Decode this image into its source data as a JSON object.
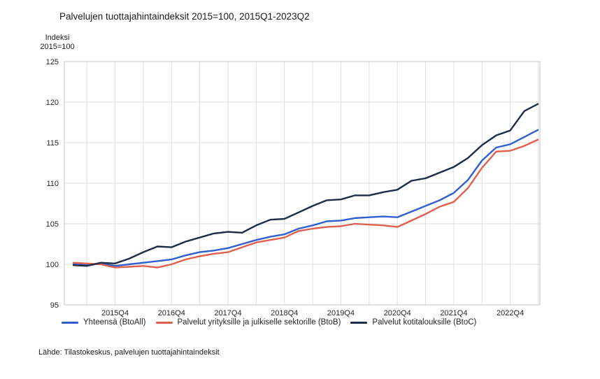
{
  "title": "Palvelujen tuottajahintaindeksit 2015=100, 2015Q1-2023Q2",
  "y_axis_unit": {
    "line1": "Indeksi",
    "line2": "2015=100"
  },
  "source_note": "Lähde: Tilastokeskus, palvelujen tuottajahintaindeksit",
  "colors": {
    "background": "#ffffff",
    "grid": "#dedede",
    "plot_border": "#c6c6c6",
    "text": "#262626",
    "series_btoall": "#2f5fd0",
    "series_btob": "#e0604e",
    "series_btoc": "#1e2c47"
  },
  "chart_data": {
    "type": "line",
    "title": "Palvelujen tuottajahintaindeksit 2015=100, 2015Q1-2023Q2",
    "xlabel": "",
    "ylabel": "Indeksi 2015=100",
    "ylim": [
      95,
      125
    ],
    "yticks": [
      95,
      100,
      105,
      110,
      115,
      120,
      125
    ],
    "grid": true,
    "legend_position": "bottom",
    "categories": [
      "2015Q1",
      "2015Q2",
      "2015Q3",
      "2015Q4",
      "2016Q1",
      "2016Q2",
      "2016Q3",
      "2016Q4",
      "2017Q1",
      "2017Q2",
      "2017Q3",
      "2017Q4",
      "2018Q1",
      "2018Q2",
      "2018Q3",
      "2018Q4",
      "2019Q1",
      "2019Q2",
      "2019Q3",
      "2019Q4",
      "2020Q1",
      "2020Q2",
      "2020Q3",
      "2020Q4",
      "2021Q1",
      "2021Q2",
      "2021Q3",
      "2021Q4",
      "2022Q1",
      "2022Q2",
      "2022Q3",
      "2022Q4",
      "2023Q1",
      "2023Q2"
    ],
    "x_tick_labels": [
      "2015Q4",
      "2016Q4",
      "2017Q4",
      "2018Q4",
      "2019Q4",
      "2020Q4",
      "2021Q4",
      "2022Q4"
    ],
    "x_tick_indices": [
      3,
      7,
      11,
      15,
      19,
      23,
      27,
      31
    ],
    "x_gridline_indices": [
      1,
      3,
      5,
      7,
      9,
      11,
      13,
      15,
      17,
      19,
      21,
      23,
      25,
      27,
      29,
      31,
      33
    ],
    "series": [
      {
        "name": "Yhteensä (BtoAll)",
        "color_key": "series_btoall",
        "values": [
          100.0,
          99.9,
          100.1,
          99.8,
          100.0,
          100.2,
          100.4,
          100.6,
          101.1,
          101.5,
          101.7,
          102.0,
          102.5,
          103.0,
          103.4,
          103.7,
          104.4,
          104.8,
          105.3,
          105.4,
          105.7,
          105.8,
          105.9,
          105.8,
          106.5,
          107.2,
          107.9,
          108.8,
          110.4,
          112.8,
          114.4,
          114.8,
          115.7,
          116.6
        ]
      },
      {
        "name": "Palvelut yrityksille ja julkiselle sektorille (BtoB)",
        "color_key": "series_btob",
        "values": [
          100.2,
          100.1,
          100.0,
          99.6,
          99.7,
          99.8,
          99.6,
          100.0,
          100.6,
          101.0,
          101.3,
          101.5,
          102.1,
          102.7,
          103.0,
          103.3,
          104.1,
          104.4,
          104.6,
          104.7,
          105.0,
          104.9,
          104.8,
          104.6,
          105.4,
          106.2,
          107.1,
          107.7,
          109.4,
          111.9,
          113.9,
          114.0,
          114.6,
          115.4
        ]
      },
      {
        "name": "Palvelut kotitalouksille (BtoC)",
        "color_key": "series_btoc",
        "values": [
          99.9,
          99.8,
          100.2,
          100.1,
          100.7,
          101.5,
          102.2,
          102.1,
          102.8,
          103.3,
          103.8,
          104.0,
          103.9,
          104.8,
          105.5,
          105.6,
          106.4,
          107.2,
          107.9,
          108.0,
          108.5,
          108.5,
          108.9,
          109.2,
          110.3,
          110.6,
          111.3,
          112.0,
          113.1,
          114.7,
          115.9,
          116.5,
          118.9,
          119.8
        ]
      }
    ]
  }
}
